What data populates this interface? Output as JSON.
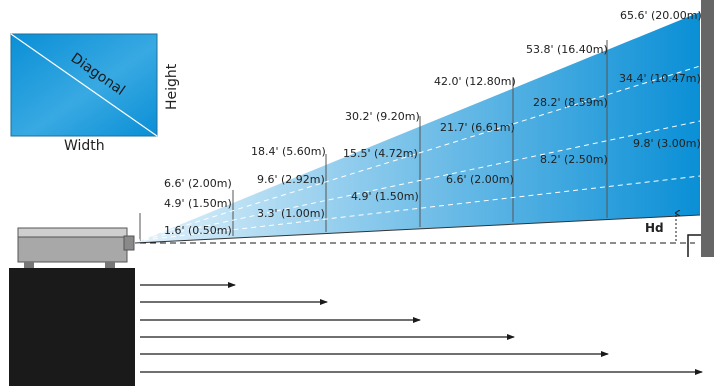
{
  "colors": {
    "screen_dark": "#0089d1",
    "screen_light": "#d8eefa",
    "beam_left": "#e3f2fb",
    "beam_right": "#0a8fd6",
    "wall": "#666666",
    "stand": "#1a1a1a",
    "projector_body": "#a8a8a8",
    "projector_top": "#cfcfcf"
  },
  "legend": {
    "diagonal": "Diagonal",
    "height": "Height",
    "width": "Width"
  },
  "hd_label": "Hd",
  "diagonal_labels": [
    "6.6' (2.00m)",
    "18.4' (5.60m)",
    "30.2' (9.20m)",
    "42.0' (12.80m)",
    "53.8' (16.40m)",
    "65.6' (20.00m)"
  ],
  "width_labels": [
    "4.9' (1.50m)",
    "9.6' (2.92m)",
    "15.5' (4.72m)",
    "21.7' (6.61m)",
    "28.2' (8.59m)",
    "34.4' (10.47m)"
  ],
  "height_labels": [
    "1.6' (0.50m)",
    "3.3' (1.00m)",
    "4.9' (1.50m)",
    "6.6' (2.00m)",
    "8.2' (2.50m)",
    "9.8' (3.00m)"
  ]
}
